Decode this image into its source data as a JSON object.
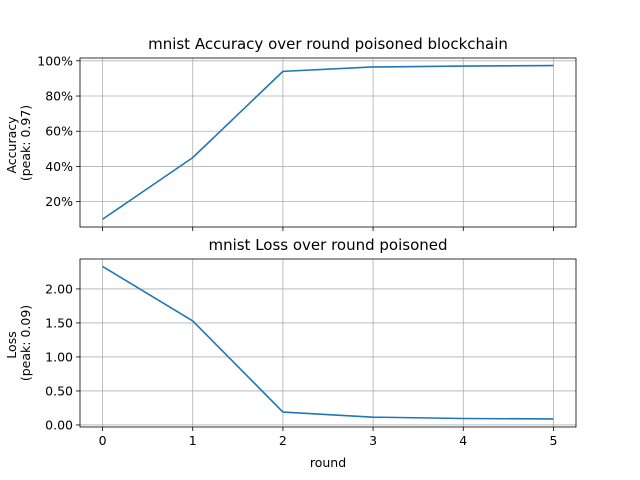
{
  "chart_data": [
    {
      "type": "line",
      "title": "mnist Accuracy over round poisoned blockchain",
      "xlabel": "",
      "ylabel": [
        "Accuracy",
        "(peak: 0.97)"
      ],
      "x": [
        0,
        1,
        2,
        3,
        4,
        5
      ],
      "series": [
        {
          "values": [
            0.1,
            0.45,
            0.94,
            0.965,
            0.97,
            0.973
          ],
          "color": "#1f77b4"
        }
      ],
      "xlim": [
        -0.25,
        5.25
      ],
      "ylim": [
        0.056,
        1.016
      ],
      "yticks": [
        0.2,
        0.4,
        0.6,
        0.8,
        1.0
      ],
      "ytick_labels": [
        "20%",
        "40%",
        "60%",
        "80%",
        "100%"
      ],
      "xticks": [
        0,
        1,
        2,
        3,
        4,
        5
      ],
      "xtick_labels": [],
      "grid": true
    },
    {
      "type": "line",
      "title": "mnist Loss over round poisoned",
      "xlabel": "round",
      "ylabel": [
        "Loss",
        "(peak: 0.09)"
      ],
      "x": [
        0,
        1,
        2,
        3,
        4,
        5
      ],
      "series": [
        {
          "values": [
            2.33,
            1.53,
            0.19,
            0.115,
            0.095,
            0.088
          ],
          "color": "#1f77b4"
        }
      ],
      "xlim": [
        -0.25,
        5.25
      ],
      "ylim": [
        -0.03,
        2.44
      ],
      "yticks": [
        0.0,
        0.5,
        1.0,
        1.5,
        2.0
      ],
      "ytick_labels": [
        "0.00",
        "0.50",
        "1.00",
        "1.50",
        "2.00"
      ],
      "xticks": [
        0,
        1,
        2,
        3,
        4,
        5
      ],
      "xtick_labels": [
        "0",
        "1",
        "2",
        "3",
        "4",
        "5"
      ],
      "grid": true
    }
  ]
}
